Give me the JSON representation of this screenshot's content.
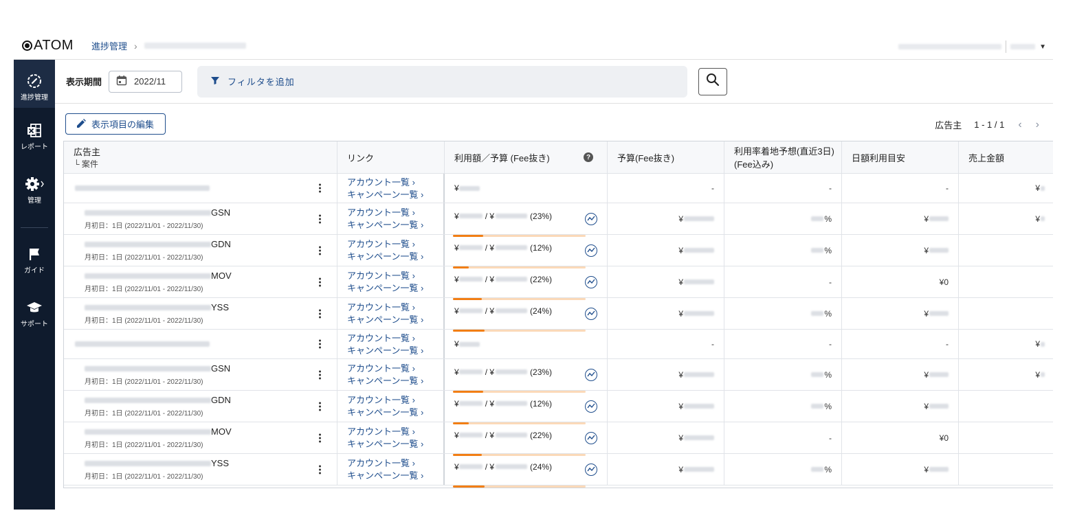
{
  "app": {
    "logo": "ATOM"
  },
  "breadcrumb": {
    "current": "進捗管理"
  },
  "sidebar": {
    "items": [
      {
        "label": "進捗管理",
        "icon": "progress-icon"
      },
      {
        "label": "レポート",
        "icon": "excel-icon"
      },
      {
        "label": "管理",
        "icon": "gear-icon"
      },
      {
        "label": "ガイド",
        "icon": "flag-icon"
      },
      {
        "label": "サポート",
        "icon": "graduation-cap-icon"
      }
    ]
  },
  "filterbar": {
    "period_label": "表示期間",
    "period_value": "2022/11",
    "filter_label": "フィルタを追加"
  },
  "toolbar": {
    "edit_label": "表示項目の編集"
  },
  "pager": {
    "label": "広告主",
    "range": "1 - 1 / 1"
  },
  "table": {
    "headers": {
      "advertiser": "広告主",
      "case": "└ 案件",
      "link": "リンク",
      "usage": "利用額／予算 (Fee抜き)",
      "budget": "予算(Fee抜き)",
      "rate_1": "利用率着地予想(直近3日)",
      "rate_2": "(Fee込み)",
      "daily": "日額利用目安",
      "sales": "売上金額"
    },
    "link_account": "アカウント一覧 ›",
    "link_campaign": "キャンペーン一覧 ›",
    "rows": [
      {
        "type": "parent",
        "usage": "¥",
        "budget": "-",
        "rate": "-",
        "daily": "-",
        "sales": "¥"
      },
      {
        "type": "child",
        "suffix": "GSN",
        "date": "月初日：1日 (2022/11/01 - 2022/11/30)",
        "usage_a": "¥",
        "usage_b": "/ ¥",
        "pct": "(23%)",
        "progress": 0.23,
        "budget": "¥",
        "rate": "%",
        "daily": "¥",
        "sales": "¥"
      },
      {
        "type": "child",
        "suffix": "GDN",
        "date": "月初日：1日 (2022/11/01 - 2022/11/30)",
        "usage_a": "¥",
        "usage_b": "/ ¥",
        "pct": "(12%)",
        "progress": 0.12,
        "budget": "¥",
        "rate": "%",
        "daily": "¥",
        "sales": ""
      },
      {
        "type": "child",
        "suffix": "MOV",
        "date": "月初日：1日 (2022/11/01 - 2022/11/30)",
        "usage_a": "¥",
        "usage_b": "/ ¥",
        "pct": "(22%)",
        "progress": 0.22,
        "budget": "¥",
        "rate": "-",
        "daily": "¥0",
        "sales": ""
      },
      {
        "type": "child",
        "suffix": "YSS",
        "date": "月初日：1日 (2022/11/01 - 2022/11/30)",
        "usage_a": "¥",
        "usage_b": "/ ¥",
        "pct": "(24%)",
        "progress": 0.24,
        "budget": "¥",
        "rate": "%",
        "daily": "¥",
        "sales": ""
      },
      {
        "type": "parent",
        "usage": "¥",
        "budget": "-",
        "rate": "-",
        "daily": "-",
        "sales": "¥"
      },
      {
        "type": "child",
        "suffix": "GSN",
        "date": "月初日：1日 (2022/11/01 - 2022/11/30)",
        "usage_a": "¥",
        "usage_b": "/ ¥",
        "pct": "(23%)",
        "progress": 0.23,
        "budget": "¥",
        "rate": "%",
        "daily": "¥",
        "sales": "¥"
      },
      {
        "type": "child",
        "suffix": "GDN",
        "date": "月初日：1日 (2022/11/01 - 2022/11/30)",
        "usage_a": "¥",
        "usage_b": "/ ¥",
        "pct": "(12%)",
        "progress": 0.12,
        "budget": "¥",
        "rate": "%",
        "daily": "¥",
        "sales": ""
      },
      {
        "type": "child",
        "suffix": "MOV",
        "date": "月初日：1日 (2022/11/01 - 2022/11/30)",
        "usage_a": "¥",
        "usage_b": "/ ¥",
        "pct": "(22%)",
        "progress": 0.22,
        "budget": "¥",
        "rate": "-",
        "daily": "¥0",
        "sales": ""
      },
      {
        "type": "child",
        "suffix": "YSS",
        "date": "月初日：1日 (2022/11/01 - 2022/11/30)",
        "usage_a": "¥",
        "usage_b": "/ ¥",
        "pct": "(24%)",
        "progress": 0.24,
        "budget": "¥",
        "rate": "%",
        "daily": "¥",
        "sales": ""
      }
    ]
  }
}
